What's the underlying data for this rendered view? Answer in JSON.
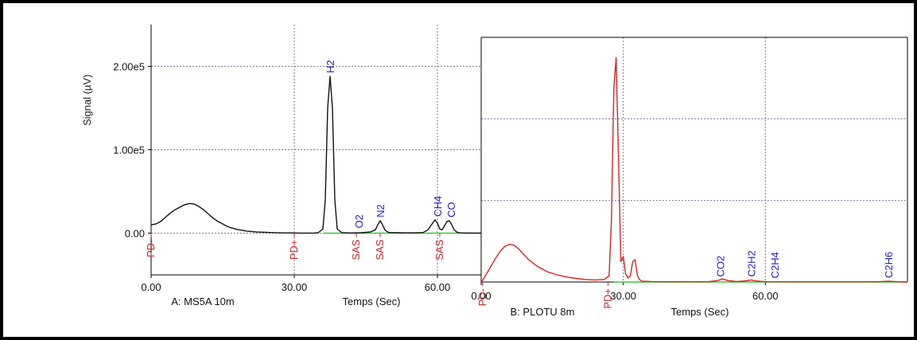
{
  "y_axis_label": "Signal (µV)",
  "chart_data": [
    {
      "type": "line",
      "caption": "A: MS5A 10m",
      "caption_color": "#111111",
      "xlabel": "Temps (Sec)",
      "ylabel": "Signal (µV)",
      "xlim": [
        0,
        70
      ],
      "ylim": [
        -50000,
        250000
      ],
      "x_ticks": [
        {
          "v": 0,
          "t": "0.00"
        },
        {
          "v": 30,
          "t": "30.00"
        },
        {
          "v": 60,
          "t": "60.00"
        }
      ],
      "y_ticks": [
        {
          "v": 0,
          "t": "0.00"
        },
        {
          "v": 100000,
          "t": "1.00e5"
        },
        {
          "v": 200000,
          "t": "2.00e5"
        }
      ],
      "grid": true,
      "line_color": "#111111",
      "baseline_color": "#33cc33",
      "series": [
        {
          "x": [
            0,
            1,
            2,
            3,
            4,
            5,
            6,
            7,
            8,
            9,
            10,
            11,
            12,
            13,
            14,
            15,
            16,
            17,
            18,
            19,
            20,
            22,
            24,
            26,
            28,
            30,
            32,
            34,
            35,
            36,
            36.5,
            37,
            37.5,
            38,
            38.5,
            39,
            40,
            42,
            44,
            46,
            47,
            47.5,
            48,
            48.5,
            49,
            49.5,
            50,
            52,
            55,
            57,
            58,
            59,
            59.5,
            60,
            60.5,
            61,
            61.5,
            62,
            62.5,
            63,
            63.5,
            64,
            64.5,
            65,
            66,
            68,
            70
          ],
          "y": [
            10000,
            11000,
            14000,
            19000,
            24000,
            28000,
            31000,
            34000,
            35500,
            35000,
            32000,
            28000,
            23000,
            18000,
            14000,
            11000,
            8000,
            6000,
            4500,
            3500,
            2500,
            1500,
            1000,
            600,
            300,
            200,
            100,
            100,
            500,
            5000,
            40000,
            150000,
            188000,
            150000,
            40000,
            5000,
            500,
            200,
            500,
            1500,
            4000,
            10000,
            15000,
            10000,
            4000,
            1500,
            800,
            500,
            400,
            800,
            4000,
            12000,
            16000,
            12000,
            5000,
            4000,
            9000,
            14000,
            15000,
            10000,
            4000,
            1500,
            600,
            300,
            200,
            100,
            100
          ]
        }
      ],
      "markers": [
        {
          "x": 0,
          "label": "PD-"
        },
        {
          "x": 30,
          "label": "PD+"
        },
        {
          "x": 43,
          "label": "SAS"
        },
        {
          "x": 48,
          "label": "SAS"
        },
        {
          "x": 60.5,
          "label": "SAS"
        }
      ],
      "marker_color": "#cc2222",
      "peak_labels": [
        {
          "x": 37.5,
          "y": 188000,
          "label": "H2"
        },
        {
          "x": 43.5,
          "y": 2000,
          "label": "O2"
        },
        {
          "x": 48,
          "y": 15000,
          "label": "N2"
        },
        {
          "x": 60,
          "y": 16000,
          "label": "CH4"
        },
        {
          "x": 62.8,
          "y": 15000,
          "label": "CO"
        }
      ],
      "peak_label_color": "#2222cc"
    },
    {
      "type": "line",
      "caption": "B: PLOTU 8m",
      "caption_color": "#cc2222",
      "xlabel": "Temps (Sec)",
      "xlim": [
        0,
        90
      ],
      "ylim": [
        0,
        240000
      ],
      "x_ticks": [
        {
          "v": 0,
          "t": "0.00"
        },
        {
          "v": 30,
          "t": "30.00"
        },
        {
          "v": 60,
          "t": "60.00"
        }
      ],
      "grid": true,
      "line_color": "#dd2222",
      "baseline_color": "#33cc33",
      "series": [
        {
          "x": [
            0,
            0.5,
            1,
            2,
            3,
            4,
            5,
            6,
            7,
            8,
            9,
            10,
            12,
            14,
            16,
            18,
            20,
            22,
            24,
            26,
            27,
            27.5,
            28,
            28.5,
            29,
            29.5,
            30,
            30.5,
            31,
            31.5,
            32,
            32.5,
            33,
            33.5,
            34,
            36,
            40,
            45,
            48,
            50,
            51,
            52,
            54,
            56,
            57,
            58,
            60,
            64,
            70,
            80,
            84,
            86,
            88,
            90
          ],
          "y": [
            0,
            3000,
            7000,
            15000,
            23000,
            30000,
            35000,
            37000,
            36000,
            32000,
            27000,
            22000,
            15000,
            10000,
            7000,
            5000,
            3500,
            2500,
            2000,
            2500,
            6000,
            60000,
            190000,
            220000,
            120000,
            20000,
            25000,
            8000,
            4000,
            6000,
            20000,
            22000,
            6000,
            2000,
            800,
            500,
            300,
            200,
            300,
            1500,
            3000,
            1500,
            400,
            1200,
            2000,
            1000,
            300,
            200,
            200,
            200,
            300,
            800,
            200,
            0
          ]
        }
      ],
      "markers": [
        {
          "x": 0.3,
          "label": "PD-"
        },
        {
          "x": 26.8,
          "label": "PD+"
        }
      ],
      "marker_color": "#cc2222",
      "peak_labels": [
        {
          "x": 50.5,
          "y": 2000,
          "label": "CO2"
        },
        {
          "x": 57,
          "y": 2000,
          "label": "C2H2"
        },
        {
          "x": 62,
          "y": 500,
          "label": "C2H4"
        },
        {
          "x": 86,
          "y": 800,
          "label": "C2H6"
        }
      ],
      "peak_label_color": "#2222cc"
    }
  ]
}
